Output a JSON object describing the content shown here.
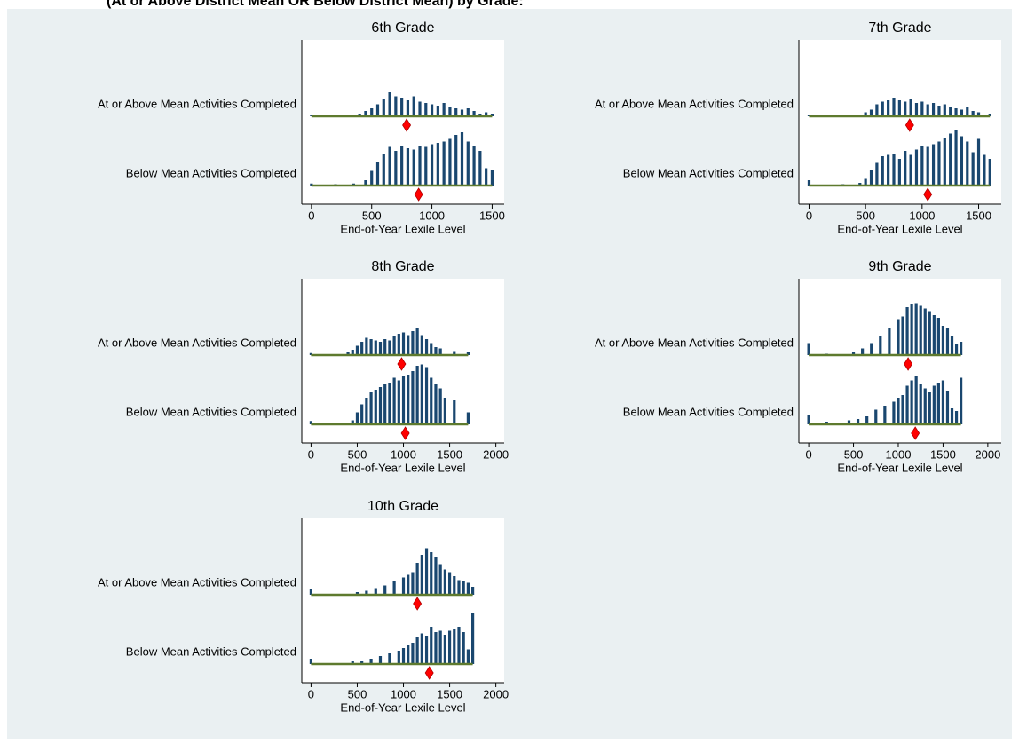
{
  "title": "(At or Above District Mean OR Below District Mean) by Grade:",
  "chart_data": [
    {
      "type": "spike",
      "title": "6th Grade",
      "x_label": "End-of-Year Lexile Level",
      "xlim": [
        -80,
        1600
      ],
      "xticks": [
        0,
        500,
        1000,
        1500
      ],
      "ylim": [
        0,
        100
      ],
      "series": [
        {
          "name": "At or Above Mean Activities Completed",
          "color": "#1a476f",
          "x": [
            0,
            200,
            350,
            400,
            450,
            500,
            550,
            600,
            650,
            700,
            750,
            800,
            850,
            900,
            950,
            1000,
            1050,
            1100,
            1150,
            1200,
            1250,
            1300,
            1350,
            1400,
            1450,
            1500
          ],
          "values": [
            2,
            1,
            2,
            4,
            8,
            12,
            18,
            26,
            36,
            30,
            28,
            24,
            30,
            22,
            20,
            18,
            16,
            20,
            14,
            12,
            10,
            12,
            8,
            4,
            6,
            4
          ],
          "mean": 790
        },
        {
          "name": "Below Mean Activities Completed",
          "color": "#1a476f",
          "x": [
            0,
            200,
            350,
            450,
            500,
            550,
            600,
            650,
            700,
            750,
            800,
            850,
            900,
            950,
            1000,
            1050,
            1100,
            1150,
            1200,
            1250,
            1300,
            1350,
            1400,
            1450,
            1500
          ],
          "values": [
            3,
            2,
            3,
            8,
            22,
            36,
            48,
            58,
            52,
            60,
            56,
            54,
            60,
            58,
            62,
            64,
            66,
            70,
            76,
            80,
            66,
            60,
            52,
            26,
            24
          ],
          "mean": 890
        }
      ]
    },
    {
      "type": "spike",
      "title": "7th Grade",
      "x_label": "End-of-Year Lexile Level",
      "xlim": [
        -90,
        1700
      ],
      "xticks": [
        0,
        500,
        1000,
        1500
      ],
      "ylim": [
        0,
        100
      ],
      "series": [
        {
          "name": "At or Above Mean Activities Completed",
          "color": "#1a476f",
          "x": [
            0,
            300,
            450,
            500,
            550,
            600,
            650,
            700,
            750,
            800,
            850,
            900,
            950,
            1000,
            1050,
            1100,
            1150,
            1200,
            1250,
            1300,
            1350,
            1400,
            1450,
            1500,
            1600
          ],
          "values": [
            2,
            1,
            2,
            6,
            10,
            18,
            22,
            24,
            28,
            24,
            22,
            26,
            20,
            22,
            18,
            20,
            16,
            18,
            14,
            12,
            10,
            14,
            8,
            6,
            4
          ],
          "mean": 890
        },
        {
          "name": "Below Mean Activities Completed",
          "color": "#1a476f",
          "x": [
            0,
            300,
            450,
            500,
            550,
            600,
            650,
            700,
            750,
            800,
            850,
            900,
            950,
            1000,
            1050,
            1100,
            1150,
            1200,
            1250,
            1300,
            1350,
            1400,
            1450,
            1500,
            1550,
            1600
          ],
          "values": [
            8,
            2,
            4,
            10,
            24,
            34,
            44,
            46,
            48,
            40,
            52,
            46,
            54,
            60,
            58,
            62,
            66,
            72,
            78,
            84,
            74,
            66,
            50,
            70,
            46,
            40
          ],
          "mean": 1050
        }
      ]
    },
    {
      "type": "spike",
      "title": "8th Grade",
      "x_label": "End-of-Year Lexile Level",
      "xlim": [
        -100,
        2090
      ],
      "xticks": [
        0,
        500,
        1000,
        1500,
        2000
      ],
      "ylim": [
        0,
        100
      ],
      "series": [
        {
          "name": "At or Above Mean Activities Completed",
          "color": "#1a476f",
          "x": [
            0,
            400,
            450,
            500,
            550,
            600,
            650,
            700,
            750,
            800,
            850,
            900,
            950,
            1000,
            1050,
            1100,
            1150,
            1200,
            1250,
            1300,
            1350,
            1400,
            1550,
            1700
          ],
          "values": [
            3,
            4,
            8,
            14,
            20,
            26,
            24,
            22,
            20,
            24,
            22,
            28,
            32,
            34,
            30,
            36,
            40,
            30,
            24,
            18,
            12,
            10,
            6,
            4
          ],
          "mean": 980
        },
        {
          "name": "Below Mean Activities Completed",
          "color": "#1a476f",
          "x": [
            0,
            250,
            450,
            500,
            550,
            600,
            650,
            700,
            750,
            800,
            850,
            900,
            950,
            1000,
            1050,
            1100,
            1150,
            1200,
            1250,
            1300,
            1350,
            1400,
            1450,
            1550,
            1700
          ],
          "values": [
            5,
            2,
            6,
            18,
            30,
            40,
            48,
            52,
            56,
            60,
            62,
            70,
            66,
            72,
            74,
            80,
            88,
            90,
            86,
            70,
            60,
            54,
            40,
            36,
            18
          ],
          "mean": 1020
        }
      ]
    },
    {
      "type": "spike",
      "title": "9th Grade",
      "x_label": "End-of-Year Lexile Level",
      "xlim": [
        -110,
        2150
      ],
      "xticks": [
        0,
        500,
        1000,
        1500,
        2000
      ],
      "ylim": [
        0,
        100
      ],
      "series": [
        {
          "name": "At or Above Mean Activities Completed",
          "color": "#1a476f",
          "x": [
            0,
            200,
            500,
            600,
            700,
            800,
            900,
            1000,
            1050,
            1100,
            1150,
            1200,
            1250,
            1300,
            1350,
            1400,
            1450,
            1500,
            1550,
            1600,
            1650,
            1700
          ],
          "values": [
            18,
            2,
            4,
            10,
            18,
            28,
            40,
            54,
            58,
            72,
            76,
            78,
            74,
            70,
            66,
            60,
            56,
            44,
            40,
            28,
            16,
            20
          ],
          "mean": 1110
        },
        {
          "name": "Below Mean Activities Completed",
          "color": "#1a476f",
          "x": [
            0,
            200,
            450,
            550,
            650,
            750,
            850,
            950,
            1000,
            1050,
            1100,
            1150,
            1200,
            1250,
            1300,
            1350,
            1400,
            1450,
            1500,
            1550,
            1600,
            1650,
            1700
          ],
          "values": [
            14,
            4,
            6,
            8,
            12,
            22,
            28,
            34,
            40,
            44,
            58,
            66,
            72,
            60,
            54,
            48,
            58,
            62,
            66,
            50,
            24,
            20,
            70
          ],
          "mean": 1190
        }
      ]
    },
    {
      "type": "spike",
      "title": "10th Grade",
      "x_label": "End-of-Year Lexile Level",
      "xlim": [
        -100,
        2090
      ],
      "xticks": [
        0,
        500,
        1000,
        1500,
        2000
      ],
      "ylim": [
        0,
        100
      ],
      "series": [
        {
          "name": "At or Above Mean Activities Completed",
          "color": "#1a476f",
          "x": [
            0,
            500,
            600,
            700,
            800,
            900,
            1000,
            1050,
            1100,
            1150,
            1200,
            1250,
            1300,
            1350,
            1400,
            1450,
            1500,
            1550,
            1600,
            1650,
            1700,
            1750
          ],
          "values": [
            8,
            4,
            6,
            10,
            14,
            20,
            26,
            30,
            34,
            48,
            60,
            70,
            64,
            56,
            46,
            38,
            34,
            28,
            22,
            20,
            18,
            12
          ],
          "mean": 1150
        },
        {
          "name": "Below Mean Activities Completed",
          "color": "#1a476f",
          "x": [
            0,
            450,
            550,
            650,
            750,
            850,
            950,
            1000,
            1050,
            1100,
            1150,
            1200,
            1250,
            1300,
            1350,
            1400,
            1450,
            1500,
            1550,
            1600,
            1650,
            1700,
            1750
          ],
          "values": [
            8,
            4,
            4,
            8,
            12,
            16,
            20,
            24,
            28,
            32,
            40,
            46,
            42,
            56,
            48,
            50,
            44,
            50,
            52,
            56,
            48,
            22,
            76
          ],
          "mean": 1280
        }
      ]
    }
  ]
}
